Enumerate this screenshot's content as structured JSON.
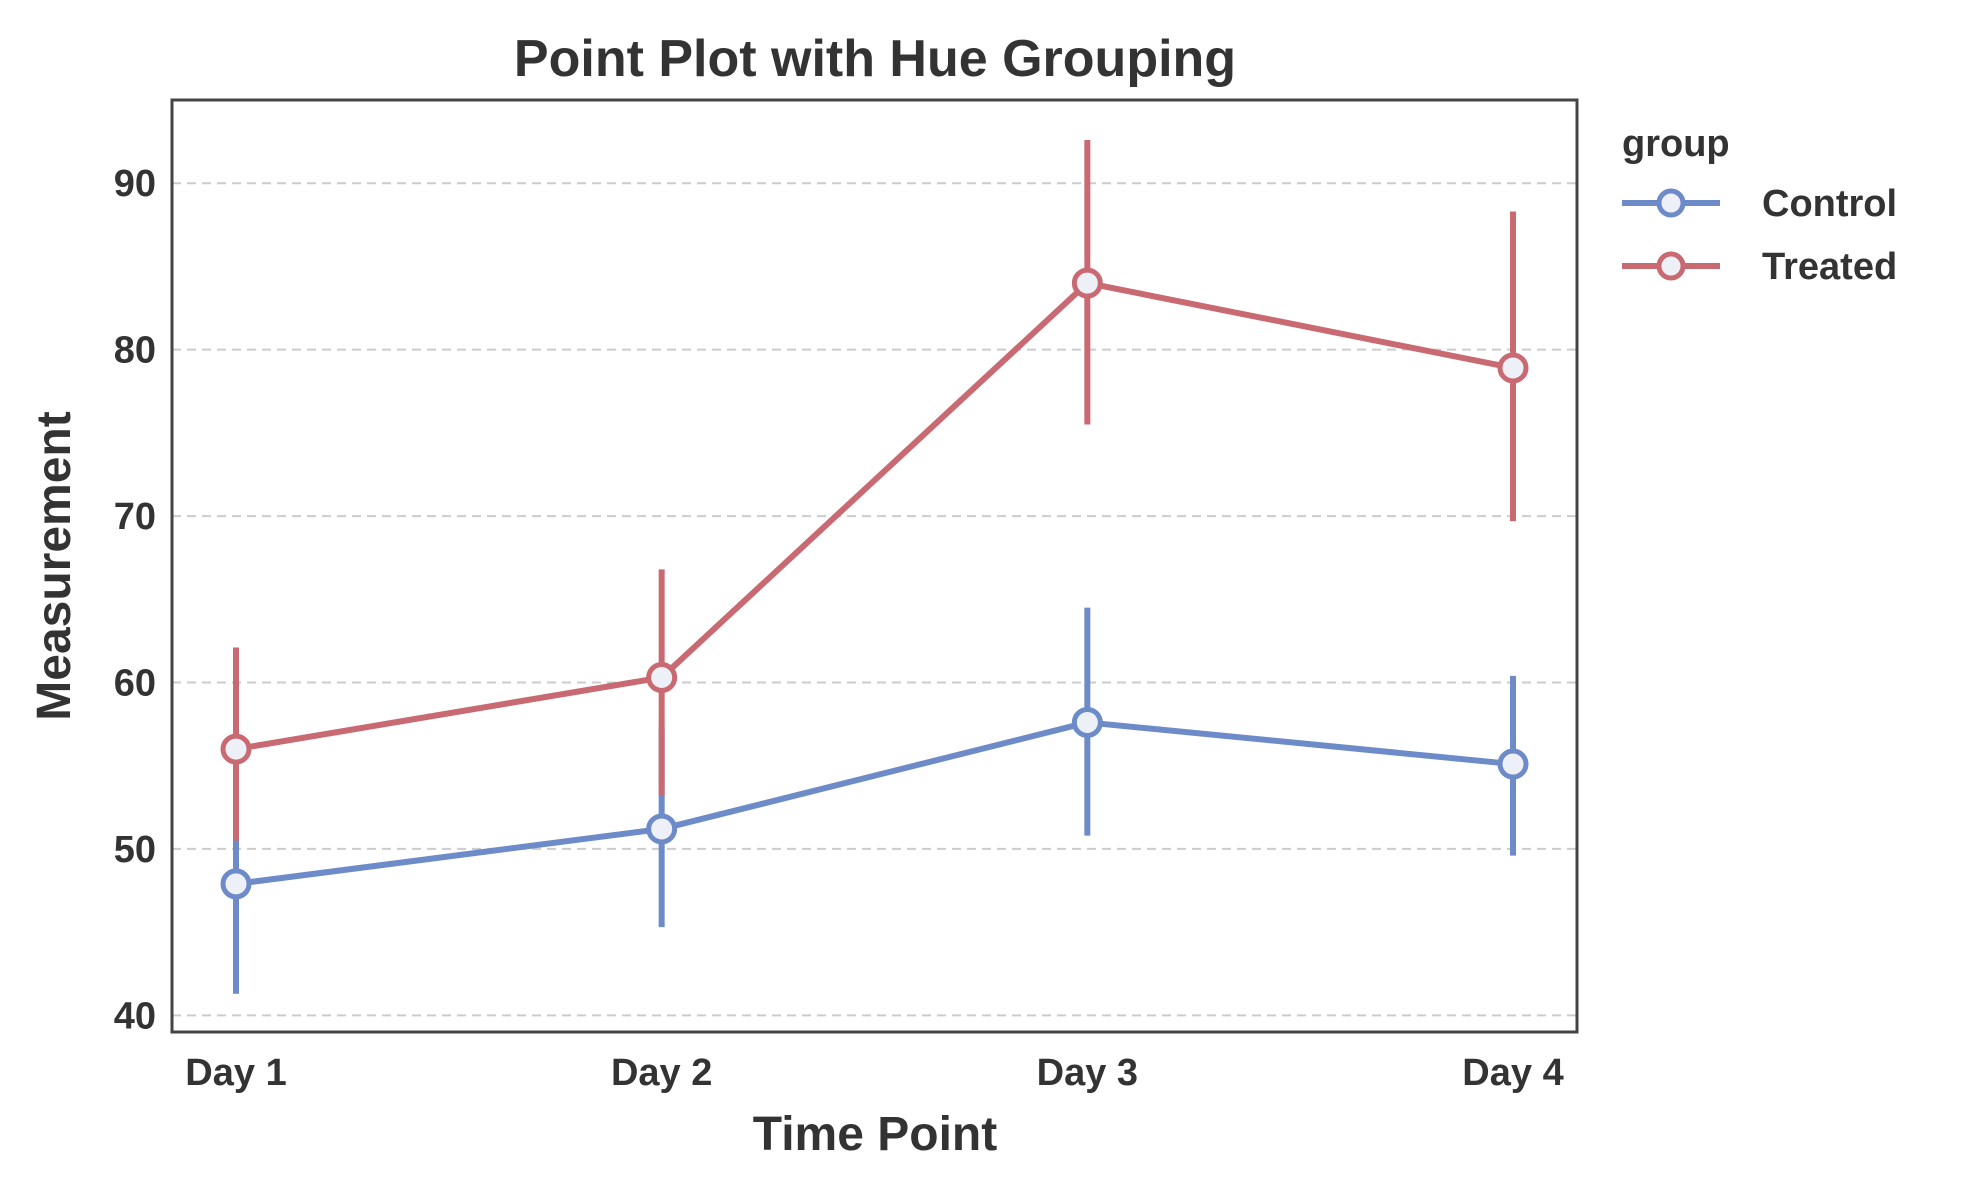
{
  "chart_data": {
    "type": "line",
    "title": "Point Plot with Hue Grouping",
    "xlabel": "Time Point",
    "ylabel": "Measurement",
    "categories": [
      "Day 1",
      "Day 2",
      "Day 3",
      "Day 4"
    ],
    "ylim": [
      39,
      95
    ],
    "yticks": [
      40,
      50,
      60,
      70,
      80,
      90
    ],
    "grid": "horizontal dashed",
    "legend": {
      "title": "group",
      "placement": "outside-right-top"
    },
    "series": [
      {
        "name": "Control",
        "color": "#6d8bc8",
        "values": [
          47.9,
          51.2,
          57.6,
          55.1
        ],
        "ci_low": [
          41.3,
          45.3,
          50.8,
          49.6
        ],
        "ci_high": [
          54.4,
          57.3,
          64.5,
          60.4
        ]
      },
      {
        "name": "Treated",
        "color": "#c96a73",
        "values": [
          56.0,
          60.3,
          84.0,
          78.9
        ],
        "ci_low": [
          50.5,
          53.2,
          75.5,
          69.7
        ],
        "ci_high": [
          62.1,
          66.8,
          92.6,
          88.3
        ]
      }
    ]
  }
}
